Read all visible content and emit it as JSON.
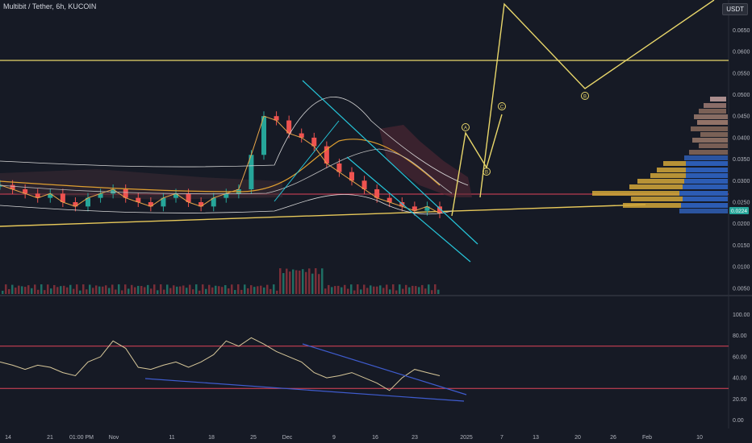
{
  "header": {
    "title": "Multibit / Tether, 6h, KUCOIN",
    "quote_currency": "USDT"
  },
  "price_panel": {
    "y_ticks": [
      "0.0650",
      "0.0600",
      "0.0550",
      "0.0500",
      "0.0450",
      "0.0400",
      "0.0350",
      "0.0300",
      "0.0250",
      "0.0200",
      "0.0150",
      "0.0100",
      "0.0050"
    ],
    "current_price": "0.0224",
    "wave_labels": [
      "A",
      "B",
      "C",
      "B"
    ]
  },
  "rsi_panel": {
    "y_ticks": [
      "100.00",
      "80.00",
      "60.00",
      "40.00",
      "20.00",
      "0.00"
    ],
    "upper_band": 70,
    "lower_band": 30
  },
  "x_axis": {
    "ticks": [
      "14",
      "21",
      "01:00 PM",
      "Nov",
      "11",
      "18",
      "25",
      "Dec",
      "9",
      "16",
      "23",
      "2025",
      "7",
      "13",
      "20",
      "26",
      "Feb",
      "10"
    ]
  },
  "chart_data": {
    "type": "line",
    "title": "Multibit / Tether, 6h, KUCOIN",
    "xlabel": "",
    "ylabel": "",
    "price_ylim": [
      0.0,
      0.07
    ],
    "rsi_ylim": [
      0,
      100
    ],
    "price_series": [
      0.029,
      0.028,
      0.027,
      0.026,
      0.027,
      0.025,
      0.024,
      0.026,
      0.027,
      0.028,
      0.026,
      0.025,
      0.024,
      0.026,
      0.027,
      0.025,
      0.024,
      0.026,
      0.027,
      0.028,
      0.036,
      0.045,
      0.044,
      0.041,
      0.04,
      0.038,
      0.034,
      0.032,
      0.03,
      0.028,
      0.026,
      0.025,
      0.024,
      0.023,
      0.024,
      0.0224
    ],
    "rsi_series": [
      55,
      52,
      48,
      52,
      50,
      45,
      42,
      55,
      60,
      75,
      68,
      50,
      48,
      52,
      55,
      50,
      55,
      62,
      75,
      70,
      78,
      72,
      65,
      60,
      55,
      45,
      40,
      42,
      45,
      40,
      35,
      28,
      40,
      48,
      45,
      42
    ]
  }
}
